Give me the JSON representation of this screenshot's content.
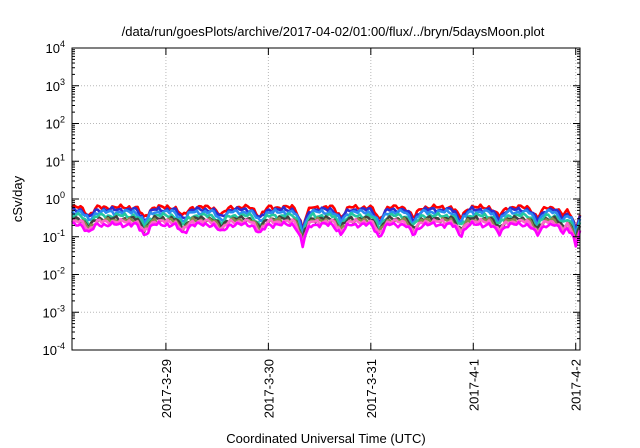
{
  "chart_data": {
    "type": "line",
    "title": "/data/run/goesPlots/archive/2017-04-02/01:00/flux/../bryn/5daysMoon.plot",
    "xlabel": "Coordinated Universal Time (UTC)",
    "ylabel": "cSv/day",
    "y_scale": "log",
    "ylim": [
      0.0001,
      10000
    ],
    "xlim": [
      "2017-03-28 02:00",
      "2017-04-02 01:00"
    ],
    "grid": true,
    "x_ticks": [
      "2017-3-29",
      "2017-3-30",
      "2017-3-31",
      "2017-4-1",
      "2017-4-2"
    ],
    "y_ticks": [
      {
        "value": 0.0001,
        "base": "10",
        "exp": "-4"
      },
      {
        "value": 0.001,
        "base": "10",
        "exp": "-3"
      },
      {
        "value": 0.01,
        "base": "10",
        "exp": "-2"
      },
      {
        "value": 0.1,
        "base": "10",
        "exp": "-1"
      },
      {
        "value": 1,
        "base": "10",
        "exp": "0"
      },
      {
        "value": 10,
        "base": "10",
        "exp": "1"
      },
      {
        "value": 100,
        "base": "10",
        "exp": "2"
      },
      {
        "value": 1000,
        "base": "10",
        "exp": "3"
      },
      {
        "value": 10000,
        "base": "10",
        "exp": "4"
      }
    ],
    "series": [
      {
        "color": "#ff0000",
        "base": 0.6
      },
      {
        "color": "#2c2cd0",
        "base": 0.52
      },
      {
        "color": "#2a8cf0",
        "base": 0.45
      },
      {
        "color": "#23c8a0",
        "base": 0.36
      },
      {
        "color": "#404040",
        "base": 0.3
      },
      {
        "color": "#8a8a4a",
        "base": 0.27
      },
      {
        "color": "#ff66cc",
        "base": 0.25
      },
      {
        "color": "#ff00ff",
        "base": 0.21
      }
    ],
    "dips": [
      {
        "x": "2017-03-28 06:00",
        "factor": 0.6
      },
      {
        "x": "2017-03-28 19:00",
        "factor": 0.5
      },
      {
        "x": "2017-03-29 04:00",
        "factor": 0.55
      },
      {
        "x": "2017-03-29 13:00",
        "factor": 0.6
      },
      {
        "x": "2017-03-29 22:00",
        "factor": 0.55
      },
      {
        "x": "2017-03-30 08:00",
        "factor": 0.25
      },
      {
        "x": "2017-03-30 17:00",
        "factor": 0.55
      },
      {
        "x": "2017-03-31 02:00",
        "factor": 0.45
      },
      {
        "x": "2017-03-31 10:00",
        "factor": 0.5
      },
      {
        "x": "2017-03-31 21:00",
        "factor": 0.5
      },
      {
        "x": "2017-04-01 06:00",
        "factor": 0.55
      },
      {
        "x": "2017-04-01 15:00",
        "factor": 0.5
      },
      {
        "x": "2017-04-01 21:00",
        "factor": 0.6
      },
      {
        "x": "2017-04-02 00:00",
        "factor": 0.25
      }
    ]
  }
}
